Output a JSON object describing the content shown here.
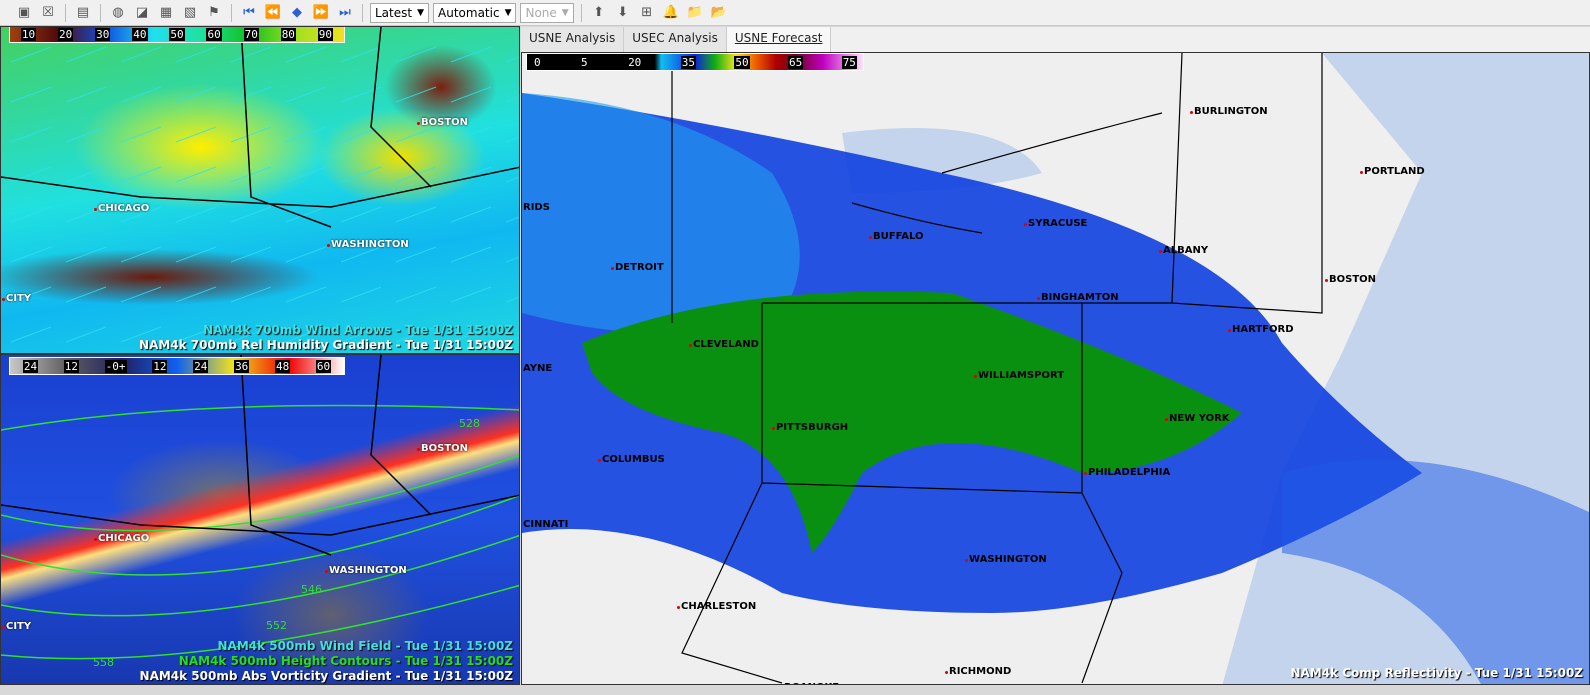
{
  "toolbar": {
    "icons": [
      "clear-product-icon",
      "remove-icon",
      "layout-icon",
      "refresh-icon",
      "contrast-icon",
      "map-icon",
      "overlay-icon",
      "pin-icon",
      "first-frame-icon",
      "step-back-icon",
      "loop-icon",
      "step-forward-icon",
      "last-frame-icon"
    ],
    "time_select": "Latest",
    "mode_select": "Automatic",
    "none_select": "None",
    "icons2": [
      "zoom-in-icon",
      "zoom-out-icon",
      "binoculars-icon",
      "alert-bell-icon",
      "add-folder-icon",
      "remove-folder-icon"
    ]
  },
  "tabs": [
    {
      "label": "USNE Analysis"
    },
    {
      "label": "USEC Analysis"
    },
    {
      "label": "USNE Forecast",
      "active": true
    }
  ],
  "panel1": {
    "colorbar": [
      "10",
      "20",
      "30",
      "40",
      "50",
      "60",
      "70",
      "80",
      "90"
    ],
    "titles": [
      {
        "text": "NAM4k 700mb Wind Arrows - Tue 1/31 15:00Z",
        "color": "#40e0e0"
      },
      {
        "text": "NAM4k 700mb Rel Humidity Gradient - Tue 1/31 15:00Z",
        "color": "#ffffff"
      }
    ],
    "cities": [
      [
        "BOSTON",
        420,
        90
      ],
      [
        "CHICAGO",
        97,
        176
      ],
      [
        "WASHINGTON",
        330,
        212
      ],
      [
        "CITY",
        5,
        266
      ]
    ]
  },
  "panel2": {
    "colorbar": [
      "24",
      "12",
      "-0+",
      "12",
      "24",
      "36",
      "48",
      "60"
    ],
    "titles": [
      {
        "text": "NAM4k 500mb Wind Field - Tue 1/31 15:00Z",
        "color": "#40e0e0"
      },
      {
        "text": "NAM4k 500mb Height Contours - Tue 1/31 15:00Z",
        "color": "#20e020"
      },
      {
        "text": "NAM4k 500mb Abs Vorticity Gradient - Tue 1/31 15:00Z",
        "color": "#ffffff"
      }
    ],
    "cities": [
      [
        "BOSTON",
        420,
        88
      ],
      [
        "CHICAGO",
        97,
        178
      ],
      [
        "WASHINGTON",
        328,
        210
      ],
      [
        "CITY",
        5,
        266
      ]
    ],
    "contours": [
      [
        "528",
        458,
        62
      ],
      [
        "546",
        300,
        228
      ],
      [
        "552",
        265,
        264
      ],
      [
        "558",
        92,
        301
      ]
    ]
  },
  "panel3": {
    "colorbar": [
      "0",
      "5",
      "20",
      "35",
      "50",
      "65",
      "75"
    ],
    "title": "NAM4k Comp Reflectivity - Tue 1/31 15:00Z",
    "cities": [
      [
        "BURLINGTON",
        672,
        53
      ],
      [
        "PORTLAND",
        842,
        113
      ],
      [
        "SYRACUSE",
        506,
        165
      ],
      [
        "BUFFALO",
        351,
        178
      ],
      [
        "ALBANY",
        641,
        192
      ],
      [
        "BOSTON",
        807,
        221
      ],
      [
        "DETROIT",
        93,
        209
      ],
      [
        "BINGHAMTON",
        519,
        239
      ],
      [
        "HARTFORD",
        710,
        271
      ],
      [
        "CLEVELAND",
        171,
        286
      ],
      [
        "WILLIAMSPORT",
        456,
        317
      ],
      [
        "NEW YORK",
        647,
        360
      ],
      [
        "PITTSBURGH",
        254,
        369
      ],
      [
        "COLUMBUS",
        80,
        401
      ],
      [
        "PHILADELPHIA",
        566,
        414
      ],
      [
        "WASHINGTON",
        447,
        501
      ],
      [
        "CHARLESTON",
        159,
        548
      ],
      [
        "RICHMOND",
        427,
        613
      ],
      [
        "ROANOKE",
        262,
        629
      ]
    ],
    "edge_labels": [
      [
        "RIDS",
        1,
        149
      ],
      [
        "AYNE",
        1,
        310
      ],
      [
        "CINNATI",
        1,
        466
      ]
    ]
  }
}
